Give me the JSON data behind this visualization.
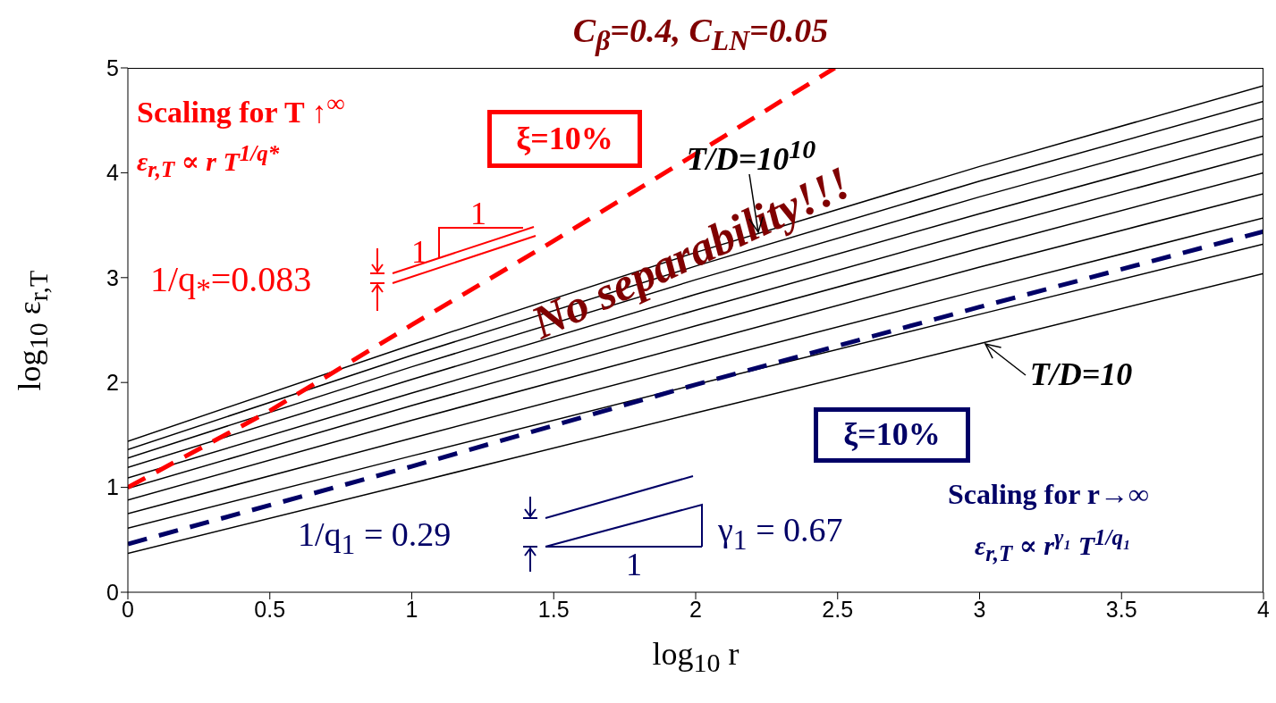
{
  "chart_data": {
    "type": "line",
    "title": "C$_{β}$=0.4, C$_{LN}$=0.05",
    "xlabel": "log$_{10}$ r",
    "ylabel": "log$_{10}$ ε$_{r,T}$",
    "xlim": [
      0,
      4
    ],
    "ylim": [
      0,
      5
    ],
    "xticks": [
      0,
      0.5,
      1,
      1.5,
      2,
      2.5,
      3,
      3.5,
      4
    ],
    "yticks": [
      0,
      1,
      2,
      3,
      4,
      5
    ],
    "marker": "none",
    "line_style": "solid",
    "x": [
      0,
      1,
      2,
      3,
      4
    ],
    "series": [
      {
        "color": "#000000",
        "values": [
          0.37,
          1.04,
          1.71,
          2.37,
          3.04
        ]
      },
      {
        "color": "#000000",
        "values": [
          0.61,
          1.3,
          1.98,
          2.65,
          3.32
        ]
      },
      {
        "color": "#000000",
        "values": [
          0.75,
          1.47,
          2.18,
          2.88,
          3.57
        ]
      },
      {
        "color": "#000000",
        "values": [
          0.88,
          1.64,
          2.37,
          3.1,
          3.8
        ]
      },
      {
        "color": "#000000",
        "values": [
          0.99,
          1.78,
          2.54,
          3.28,
          4.0
        ]
      },
      {
        "color": "#000000",
        "values": [
          1.09,
          1.9,
          2.69,
          3.45,
          4.18
        ]
      },
      {
        "color": "#000000",
        "values": [
          1.19,
          2.03,
          2.84,
          3.61,
          4.35
        ]
      },
      {
        "color": "#000000",
        "values": [
          1.28,
          2.15,
          2.98,
          3.77,
          4.52
        ]
      },
      {
        "color": "#000000",
        "values": [
          1.36,
          2.26,
          3.11,
          3.92,
          4.68
        ]
      },
      {
        "color": "#000000",
        "values": [
          1.44,
          2.36,
          3.24,
          4.06,
          4.83
        ]
      },
      {
        "color": "#ff0000",
        "line_style": "dashed",
        "x": [
          0,
          0.5,
          1,
          1.5,
          2,
          2.49
        ],
        "values": [
          1.0,
          1.73,
          2.55,
          3.35,
          4.18,
          5.0
        ]
      },
      {
        "color": "#000066",
        "line_style": "dashed",
        "x": [
          0,
          1,
          2,
          3,
          4
        ],
        "values": [
          0.46,
          1.2,
          1.98,
          2.72,
          3.44
        ]
      }
    ],
    "annotations": [
      "Scaling for T ↑$^{∞}$",
      "ε$_{r,T}$ ∝ r T$^{1/q*}$",
      "ξ=10%",
      "1/q$_{*}$=0.083",
      "1",
      "1",
      "No separability!!!",
      "ξ=10%",
      "Scaling for r→∞",
      "ε$_{r,T}$ ∝ r$^{γ₁}$ T$^{1/q₁}$",
      "1/q$_{1}$ = 0.29",
      "γ$_{1}$ = 0.67",
      "1",
      {
        "text": "T/D=10$^{10}$",
        "x": 2.22,
        "y": 3.43
      },
      {
        "text": "T/D=10",
        "x": 3.02,
        "y": 2.37
      }
    ]
  }
}
